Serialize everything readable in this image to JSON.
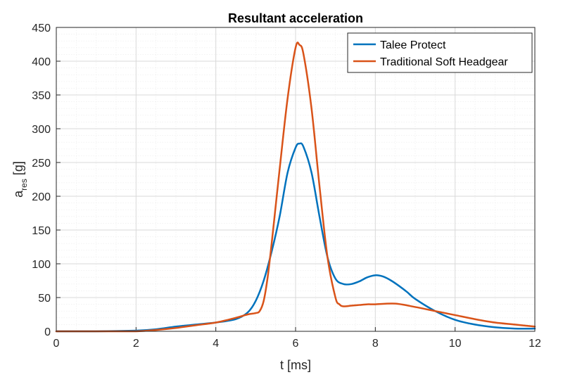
{
  "chart_data": {
    "type": "line",
    "title": "Resultant acceleration",
    "xlabel": "t [ms]",
    "ylabel_main": "a",
    "ylabel_sub": "res",
    "ylabel_unit": " [g]",
    "xlim": [
      0,
      12
    ],
    "ylim": [
      0,
      450
    ],
    "xticks": [
      "0",
      "2",
      "4",
      "6",
      "8",
      "10",
      "12"
    ],
    "yticks": [
      "0",
      "50",
      "100",
      "150",
      "200",
      "250",
      "300",
      "350",
      "400",
      "450"
    ],
    "grid": true,
    "legend_position": "top-right",
    "series": [
      {
        "name": "Talee Protect",
        "color": "#0072BD",
        "x": [
          0,
          1,
          2,
          2.5,
          3,
          3.5,
          4,
          4.5,
          4.8,
          5,
          5.2,
          5.4,
          5.6,
          5.8,
          6.0,
          6.1,
          6.2,
          6.4,
          6.6,
          6.8,
          7.0,
          7.2,
          7.4,
          7.6,
          7.8,
          8.0,
          8.2,
          8.4,
          8.6,
          8.8,
          9.0,
          9.5,
          10.0,
          10.5,
          11,
          11.5,
          12
        ],
        "y": [
          0,
          0,
          1,
          3,
          7,
          10,
          13,
          18,
          28,
          45,
          75,
          118,
          170,
          235,
          272,
          278,
          273,
          235,
          170,
          110,
          78,
          70,
          70,
          74,
          80,
          83,
          81,
          75,
          67,
          58,
          48,
          30,
          17,
          10,
          6,
          4,
          4
        ]
      },
      {
        "name": "Traditional Soft Headgear",
        "color": "#D95319",
        "x": [
          0,
          1,
          2,
          2.5,
          3,
          3.5,
          4,
          4.5,
          4.8,
          5.0,
          5.1,
          5.2,
          5.3,
          5.4,
          5.5,
          5.6,
          5.8,
          6.0,
          6.1,
          6.2,
          6.4,
          6.6,
          6.8,
          7.0,
          7.1,
          7.2,
          7.4,
          7.6,
          7.8,
          8.0,
          8.5,
          9.0,
          9.5,
          10,
          10.5,
          11,
          11.5,
          12
        ],
        "y": [
          0,
          0,
          0,
          2,
          5,
          9,
          13,
          20,
          25,
          27,
          30,
          45,
          80,
          130,
          185,
          240,
          345,
          420,
          424,
          410,
          330,
          215,
          110,
          50,
          40,
          37,
          38,
          39,
          40,
          40,
          41,
          36,
          30,
          24,
          18,
          13,
          10,
          7
        ]
      }
    ]
  }
}
